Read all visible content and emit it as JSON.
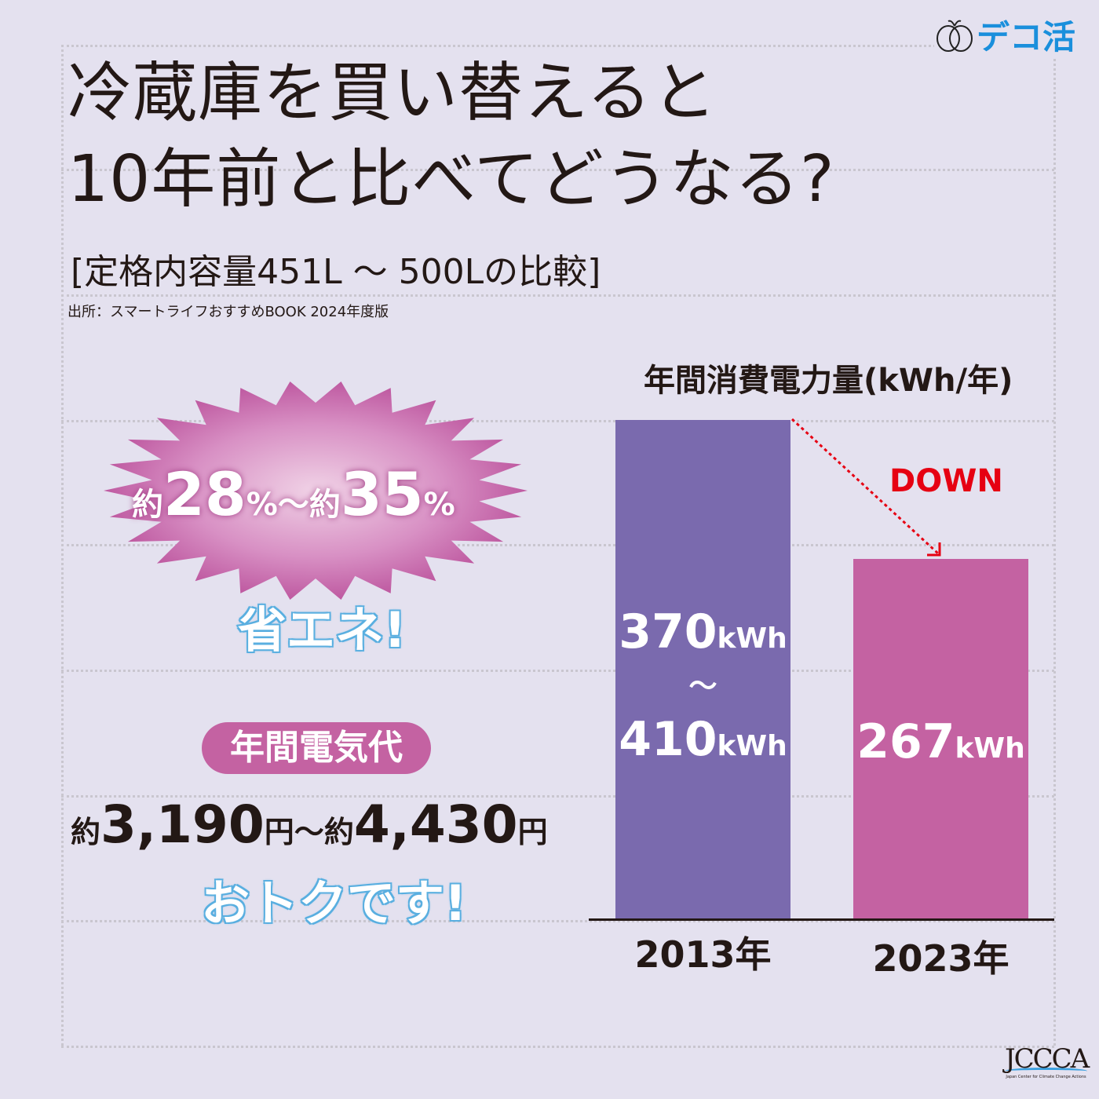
{
  "logo": {
    "text": "デコ活",
    "mark": "eco-apple-icon"
  },
  "title": {
    "line1": "冷蔵庫を買い替えると",
    "line2": "10年前と比べてどうなる?"
  },
  "subtitle": "[定格内容量451L ～ 500Lの比較]",
  "source": "出所：スマートライフおすすめBOOK 2024年度版",
  "burst": {
    "prefix1": "約",
    "value1": "28",
    "pct1": "%",
    "sep": "～",
    "prefix2": "約",
    "value2": "35",
    "pct2": "%",
    "caption": "省エネ!"
  },
  "cost": {
    "badge": "年間電気代",
    "prefix1": "約",
    "value1": "3,190",
    "unit1": "円",
    "sep": "～",
    "prefix2": "約",
    "value2": "4,430",
    "unit2": "円",
    "caption": "おトクです!"
  },
  "chart_data": {
    "type": "bar",
    "title": "年間消費電力量(kWh/年)",
    "categories": [
      "2013年",
      "2023年"
    ],
    "values": [
      370,
      267
    ],
    "ranges": [
      [
        370,
        410
      ],
      [
        267,
        267
      ]
    ],
    "labels": [
      {
        "v1": "370",
        "u1": "kWh",
        "tilde": "～",
        "v2": "410",
        "u2": "kWh"
      },
      {
        "v1": "267",
        "u1": "kWh"
      }
    ],
    "colors": [
      "#7a6aae",
      "#c462a2"
    ],
    "annotation": "DOWN",
    "annotation_color": "#e60012"
  },
  "footer": {
    "org": "JCCCA",
    "org_full": "Japan Center for Climate Change Actions"
  }
}
